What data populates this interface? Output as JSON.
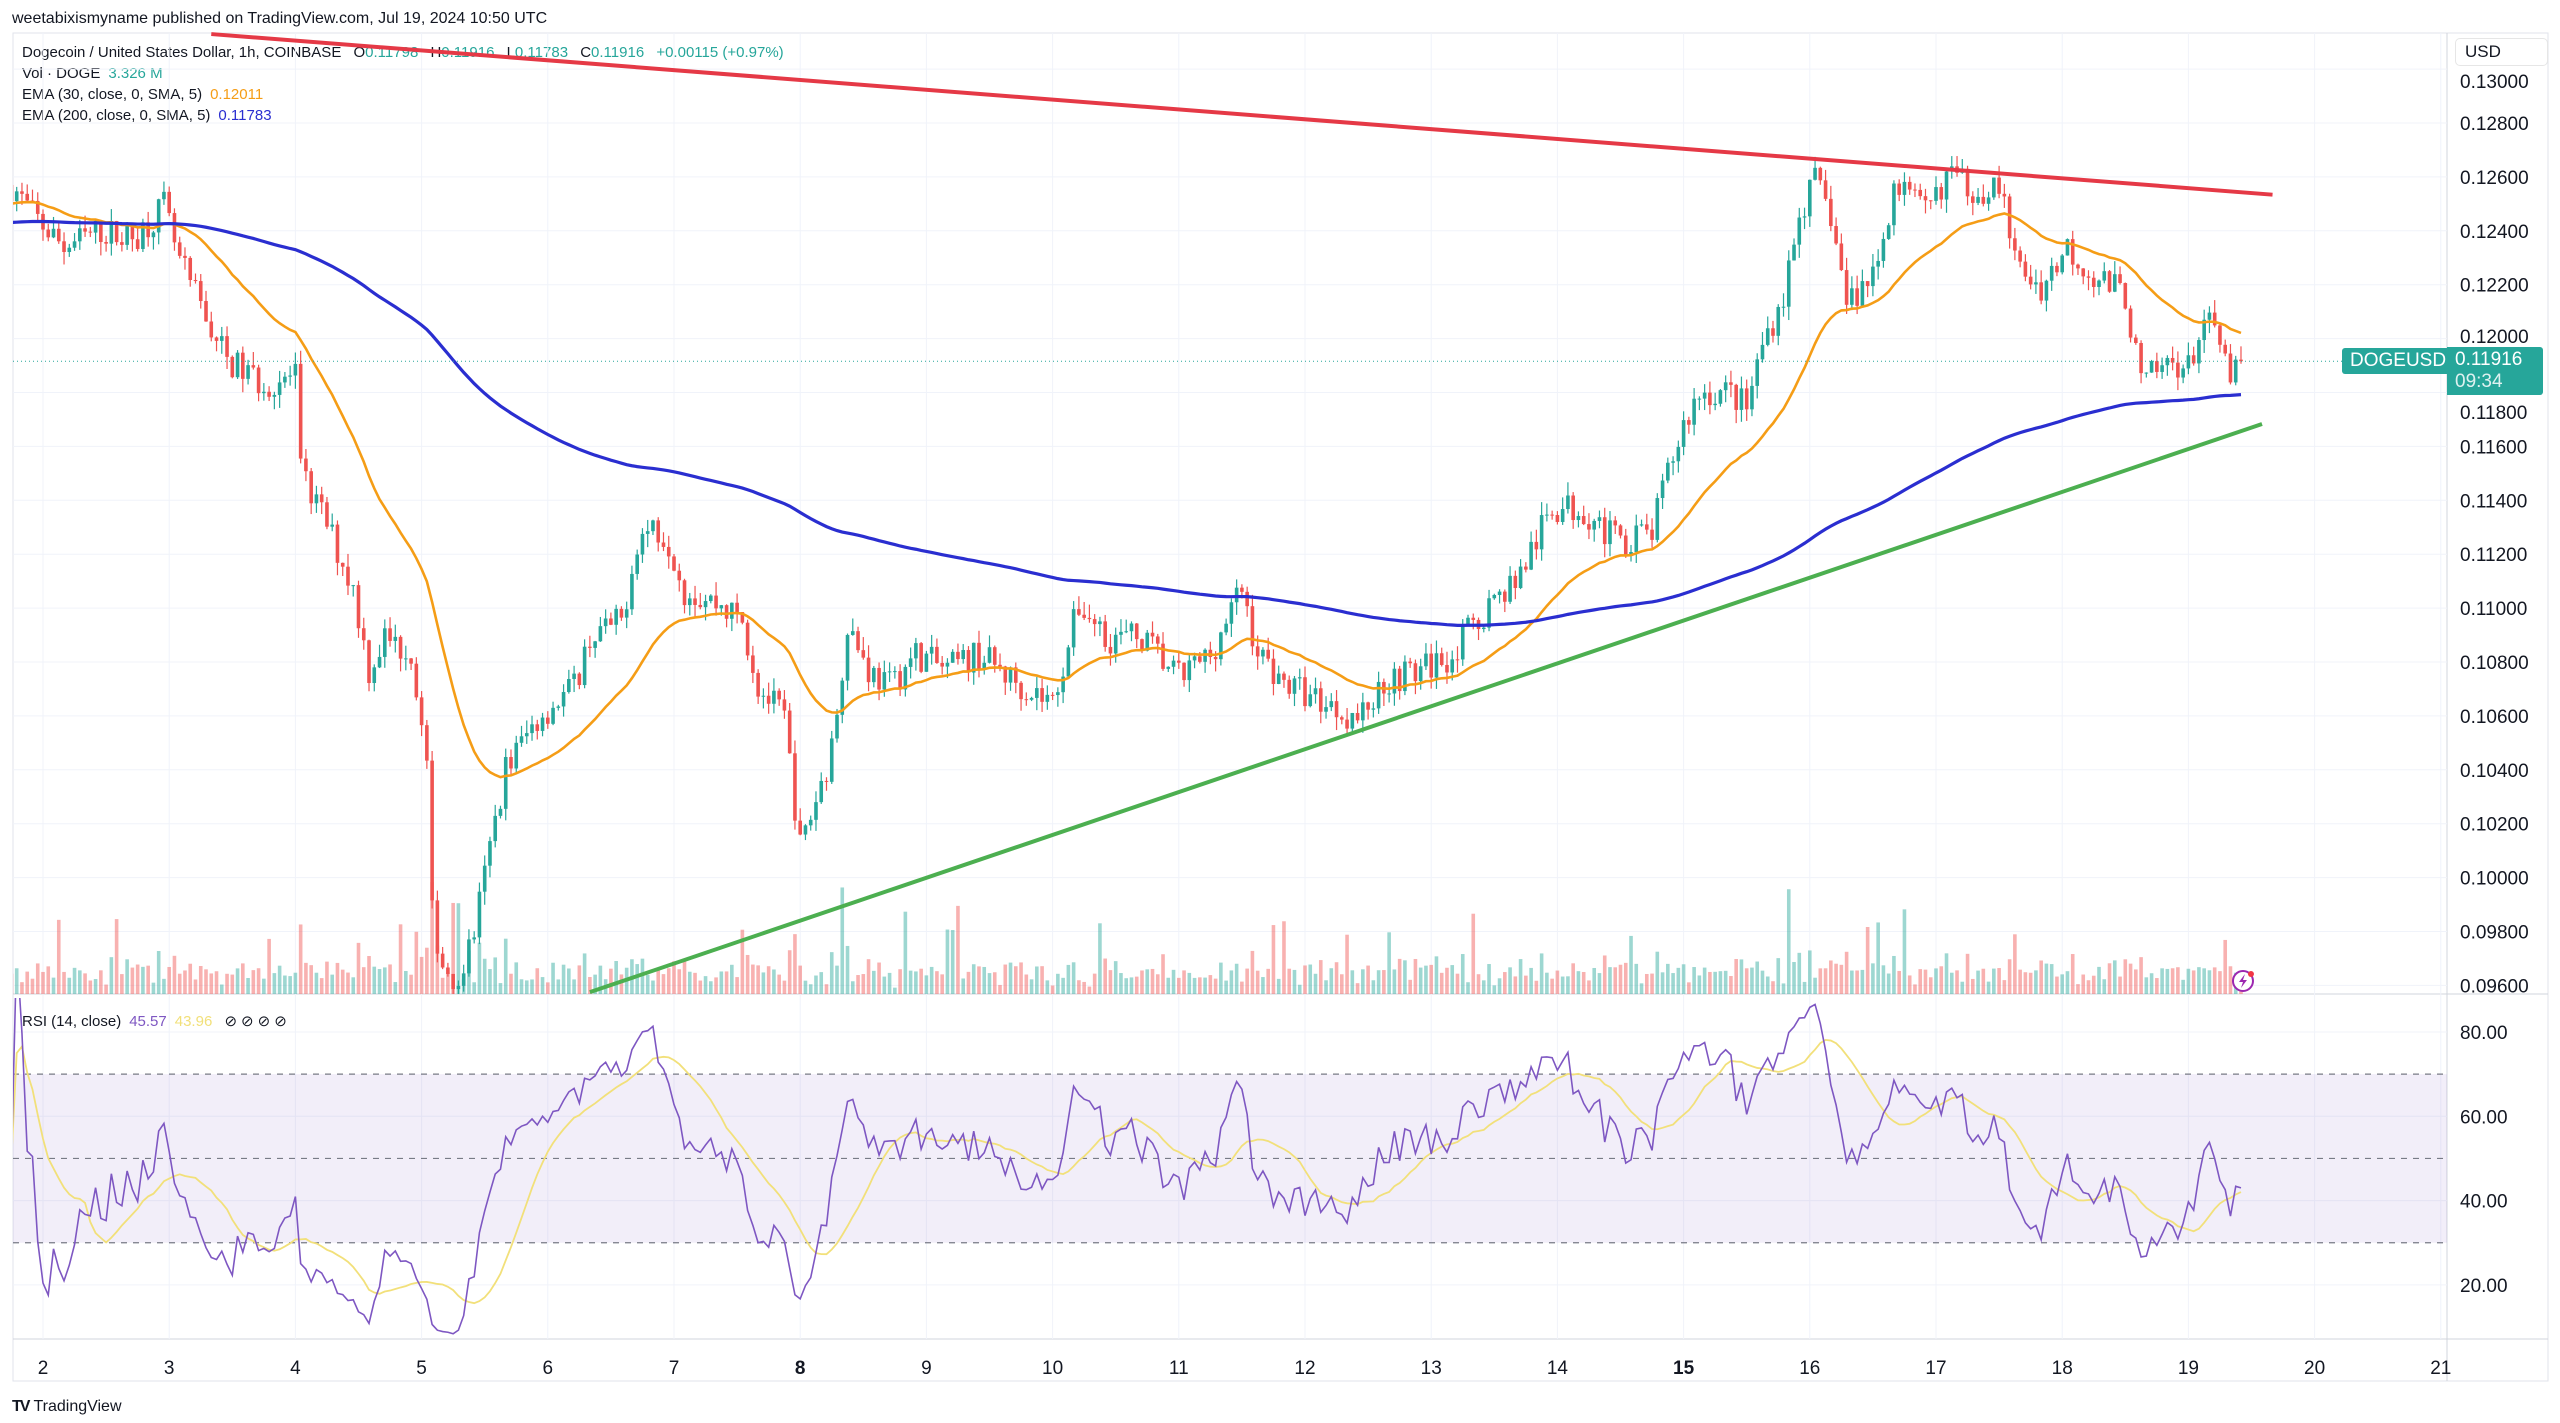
{
  "header": {
    "published": "weetabixismyname published on TradingView.com, Jul 19, 2024 10:50 UTC"
  },
  "legend": {
    "symbol": "Dogecoin / United States Dollar, 1h, COINBASE",
    "o_label": "O",
    "o": "0.11798",
    "h_label": "H",
    "h": "0.11916",
    "l_label": "L",
    "l": "0.11783",
    "c_label": "C",
    "c": "0.11916",
    "change": "+0.00115 (+0.97%)",
    "vol_label": "Vol · DOGE",
    "vol": "3.326 M",
    "ema30_label": "EMA (30, close, 0, SMA, 5)",
    "ema30": "0.12011",
    "ema200_label": "EMA (200, close, 0, SMA, 5)",
    "ema200": "0.11783",
    "rsi_label": "RSI (14, close)",
    "rsi": "45.57",
    "rsi_ma": "43.96",
    "rsi_icons": [
      "hidden-value-icon",
      "hidden-value-icon",
      "hidden-value-icon",
      "hidden-value-icon"
    ]
  },
  "price_axis": {
    "currency": "USD",
    "symbol_badge": "DOGEUSD",
    "last_price": "0.11916",
    "countdown": "09:34"
  },
  "branding": {
    "name": "TradingView",
    "logo": "TV"
  },
  "colors": {
    "up": "#26a69a",
    "down": "#ef5350",
    "ema30": "#f59d16",
    "ema200": "#2a2ed0",
    "resistance": "#e53946",
    "support": "#4caf50",
    "rsi": "#7e57c2",
    "rsi_ma": "#f2e07a"
  },
  "chart_data": [
    {
      "type": "candlestick",
      "interval": "1h",
      "ylim": [
        0.0955,
        0.1305
      ],
      "yticks": [
        "0.09600",
        "0.09800",
        "0.10000",
        "0.10200",
        "0.10400",
        "0.10600",
        "0.10800",
        "0.11000",
        "0.11200",
        "0.11400",
        "0.11600",
        "0.11800",
        "0.12000",
        "0.12200",
        "0.12400",
        "0.12600",
        "0.12800",
        "0.13000"
      ],
      "xticks": [
        {
          "label": "2",
          "date": "2024-07-02"
        },
        {
          "label": "3",
          "date": "2024-07-03"
        },
        {
          "label": "4",
          "date": "2024-07-04"
        },
        {
          "label": "5",
          "date": "2024-07-05"
        },
        {
          "label": "6",
          "date": "2024-07-06"
        },
        {
          "label": "7",
          "date": "2024-07-07"
        },
        {
          "label": "8",
          "date": "2024-07-08",
          "bold": true
        },
        {
          "label": "9",
          "date": "2024-07-09"
        },
        {
          "label": "10",
          "date": "2024-07-10"
        },
        {
          "label": "11",
          "date": "2024-07-11"
        },
        {
          "label": "12",
          "date": "2024-07-12"
        },
        {
          "label": "13",
          "date": "2024-07-13"
        },
        {
          "label": "14",
          "date": "2024-07-14"
        },
        {
          "label": "15",
          "date": "2024-07-15",
          "bold": true
        },
        {
          "label": "16",
          "date": "2024-07-16"
        },
        {
          "label": "17",
          "date": "2024-07-17"
        },
        {
          "label": "18",
          "date": "2024-07-18"
        },
        {
          "label": "19",
          "date": "2024-07-19"
        },
        {
          "label": "20",
          "date": "2024-07-20"
        },
        {
          "label": "21",
          "date": "2024-07-21"
        }
      ],
      "grid": true,
      "close_path": [
        [
          "2024-07-01T18:00",
          0.1257
        ],
        [
          "2024-07-01T22:00",
          0.1246
        ],
        [
          "2024-07-02T04:00",
          0.1234
        ],
        [
          "2024-07-02T11:00",
          0.124
        ],
        [
          "2024-07-02T17:00",
          0.1237
        ],
        [
          "2024-07-02T23:00",
          0.1249
        ],
        [
          "2024-07-03T02:00",
          0.1228
        ],
        [
          "2024-07-03T05:00",
          0.1216
        ],
        [
          "2024-07-03T11:00",
          0.1192
        ],
        [
          "2024-07-03T18:00",
          0.1183
        ],
        [
          "2024-07-04T00:00",
          0.1186
        ],
        [
          "2024-07-04T01:00",
          0.115
        ],
        [
          "2024-07-04T06:00",
          0.1131
        ],
        [
          "2024-07-04T11:00",
          0.1107
        ],
        [
          "2024-07-04T14:00",
          0.1077
        ],
        [
          "2024-07-04T17:00",
          0.1089
        ],
        [
          "2024-07-04T22:00",
          0.1083
        ],
        [
          "2024-07-05T01:00",
          0.1041
        ],
        [
          "2024-07-05T02:00",
          0.0986
        ],
        [
          "2024-07-05T04:00",
          0.0968
        ],
        [
          "2024-07-05T07:00",
          0.0962
        ],
        [
          "2024-07-05T10:00",
          0.098
        ],
        [
          "2024-07-05T13:00",
          0.1011
        ],
        [
          "2024-07-05T16:00",
          0.1041
        ],
        [
          "2024-07-05T22:00",
          0.1059
        ],
        [
          "2024-07-06T05:00",
          0.1071
        ],
        [
          "2024-07-06T08:00",
          0.1089
        ],
        [
          "2024-07-06T14:00",
          0.1095
        ],
        [
          "2024-07-06T17:00",
          0.1125
        ],
        [
          "2024-07-06T20:00",
          0.1131
        ],
        [
          "2024-07-06T23:00",
          0.1125
        ],
        [
          "2024-07-07T02:00",
          0.1107
        ],
        [
          "2024-07-07T09:00",
          0.1101
        ],
        [
          "2024-07-07T13:00",
          0.1095
        ],
        [
          "2024-07-07T16:00",
          0.1071
        ],
        [
          "2024-07-07T21:00",
          0.1059
        ],
        [
          "2024-07-08T00:00",
          0.1011
        ],
        [
          "2024-07-08T03:00",
          0.1029
        ],
        [
          "2024-07-08T06:00",
          0.1047
        ],
        [
          "2024-07-08T09:00",
          0.1095
        ],
        [
          "2024-07-08T13:00",
          0.1077
        ],
        [
          "2024-07-08T17:00",
          0.1071
        ],
        [
          "2024-07-08T22:00",
          0.1083
        ],
        [
          "2024-07-09T04:00",
          0.1077
        ],
        [
          "2024-07-09T10:00",
          0.1083
        ],
        [
          "2024-07-09T16:00",
          0.1074
        ],
        [
          "2024-07-10T00:00",
          0.1065
        ],
        [
          "2024-07-10T05:00",
          0.1101
        ],
        [
          "2024-07-10T11:00",
          0.1089
        ],
        [
          "2024-07-10T17:00",
          0.1089
        ],
        [
          "2024-07-11T00:00",
          0.1074
        ],
        [
          "2024-07-11T06:00",
          0.1083
        ],
        [
          "2024-07-11T12:00",
          0.1107
        ],
        [
          "2024-07-11T15:00",
          0.1083
        ],
        [
          "2024-07-11T21:00",
          0.1071
        ],
        [
          "2024-07-12T04:00",
          0.1065
        ],
        [
          "2024-07-12T10:00",
          0.1059
        ],
        [
          "2024-07-12T16:00",
          0.1074
        ],
        [
          "2024-07-12T22:00",
          0.1077
        ],
        [
          "2024-07-13T04:00",
          0.1083
        ],
        [
          "2024-07-13T11:00",
          0.1101
        ],
        [
          "2024-07-13T17:00",
          0.1113
        ],
        [
          "2024-07-13T23:00",
          0.1137
        ],
        [
          "2024-07-14T05:00",
          0.1137
        ],
        [
          "2024-07-14T11:00",
          0.1125
        ],
        [
          "2024-07-14T18:00",
          0.1128
        ],
        [
          "2024-07-14T21:00",
          0.115
        ],
        [
          "2024-07-15T00:00",
          0.1168
        ],
        [
          "2024-07-15T03:00",
          0.118
        ],
        [
          "2024-07-15T09:00",
          0.118
        ],
        [
          "2024-07-15T12:00",
          0.1174
        ],
        [
          "2024-07-15T15:00",
          0.1198
        ],
        [
          "2024-07-15T19:00",
          0.1216
        ],
        [
          "2024-07-15T22:00",
          0.1246
        ],
        [
          "2024-07-16T01:00",
          0.1258
        ],
        [
          "2024-07-16T04:00",
          0.1246
        ],
        [
          "2024-07-16T07:00",
          0.1213
        ],
        [
          "2024-07-16T10:00",
          0.1219
        ],
        [
          "2024-07-16T13:00",
          0.1228
        ],
        [
          "2024-07-16T16:00",
          0.1258
        ],
        [
          "2024-07-16T22:00",
          0.1246
        ],
        [
          "2024-07-17T02:00",
          0.1261
        ],
        [
          "2024-07-17T08:00",
          0.1255
        ],
        [
          "2024-07-17T12:00",
          0.1258
        ],
        [
          "2024-07-17T15:00",
          0.1228
        ],
        [
          "2024-07-17T20:00",
          0.1219
        ],
        [
          "2024-07-18T01:00",
          0.1234
        ],
        [
          "2024-07-18T05:00",
          0.1225
        ],
        [
          "2024-07-18T12:00",
          0.1216
        ],
        [
          "2024-07-18T15:00",
          0.1183
        ],
        [
          "2024-07-18T21:00",
          0.1192
        ],
        [
          "2024-07-19T00:00",
          0.1189
        ],
        [
          "2024-07-19T03:00",
          0.1207
        ],
        [
          "2024-07-19T06:00",
          0.1198
        ],
        [
          "2024-07-19T08:00",
          0.1183
        ],
        [
          "2024-07-19T10:00",
          0.11916
        ]
      ],
      "last_price": 0.11916,
      "ema": [
        {
          "name": "EMA (30, close, 0, SMA, 5)",
          "period": 30,
          "last": 0.12011
        },
        {
          "name": "EMA (200, close, 0, SMA, 5)",
          "period": 200,
          "last": 0.11783
        }
      ],
      "trendlines": [
        {
          "kind": "resistance",
          "from": [
            "2024-07-03T08:00",
            0.1313
          ],
          "to": [
            "2024-07-19T16:00",
            0.12534
          ]
        },
        {
          "kind": "support",
          "from": [
            "2024-07-06T08:00",
            0.09575
          ],
          "to": [
            "2024-07-19T14:00",
            0.11683
          ]
        }
      ]
    },
    {
      "type": "line",
      "title": "RSI (14, close)",
      "period": 14,
      "ylim": [
        12,
        86
      ],
      "yticks": [
        "20.00",
        "40.00",
        "60.00",
        "80.00"
      ],
      "bands": [
        30,
        50,
        70
      ],
      "last": 45.57,
      "ma_last": 43.96
    }
  ]
}
